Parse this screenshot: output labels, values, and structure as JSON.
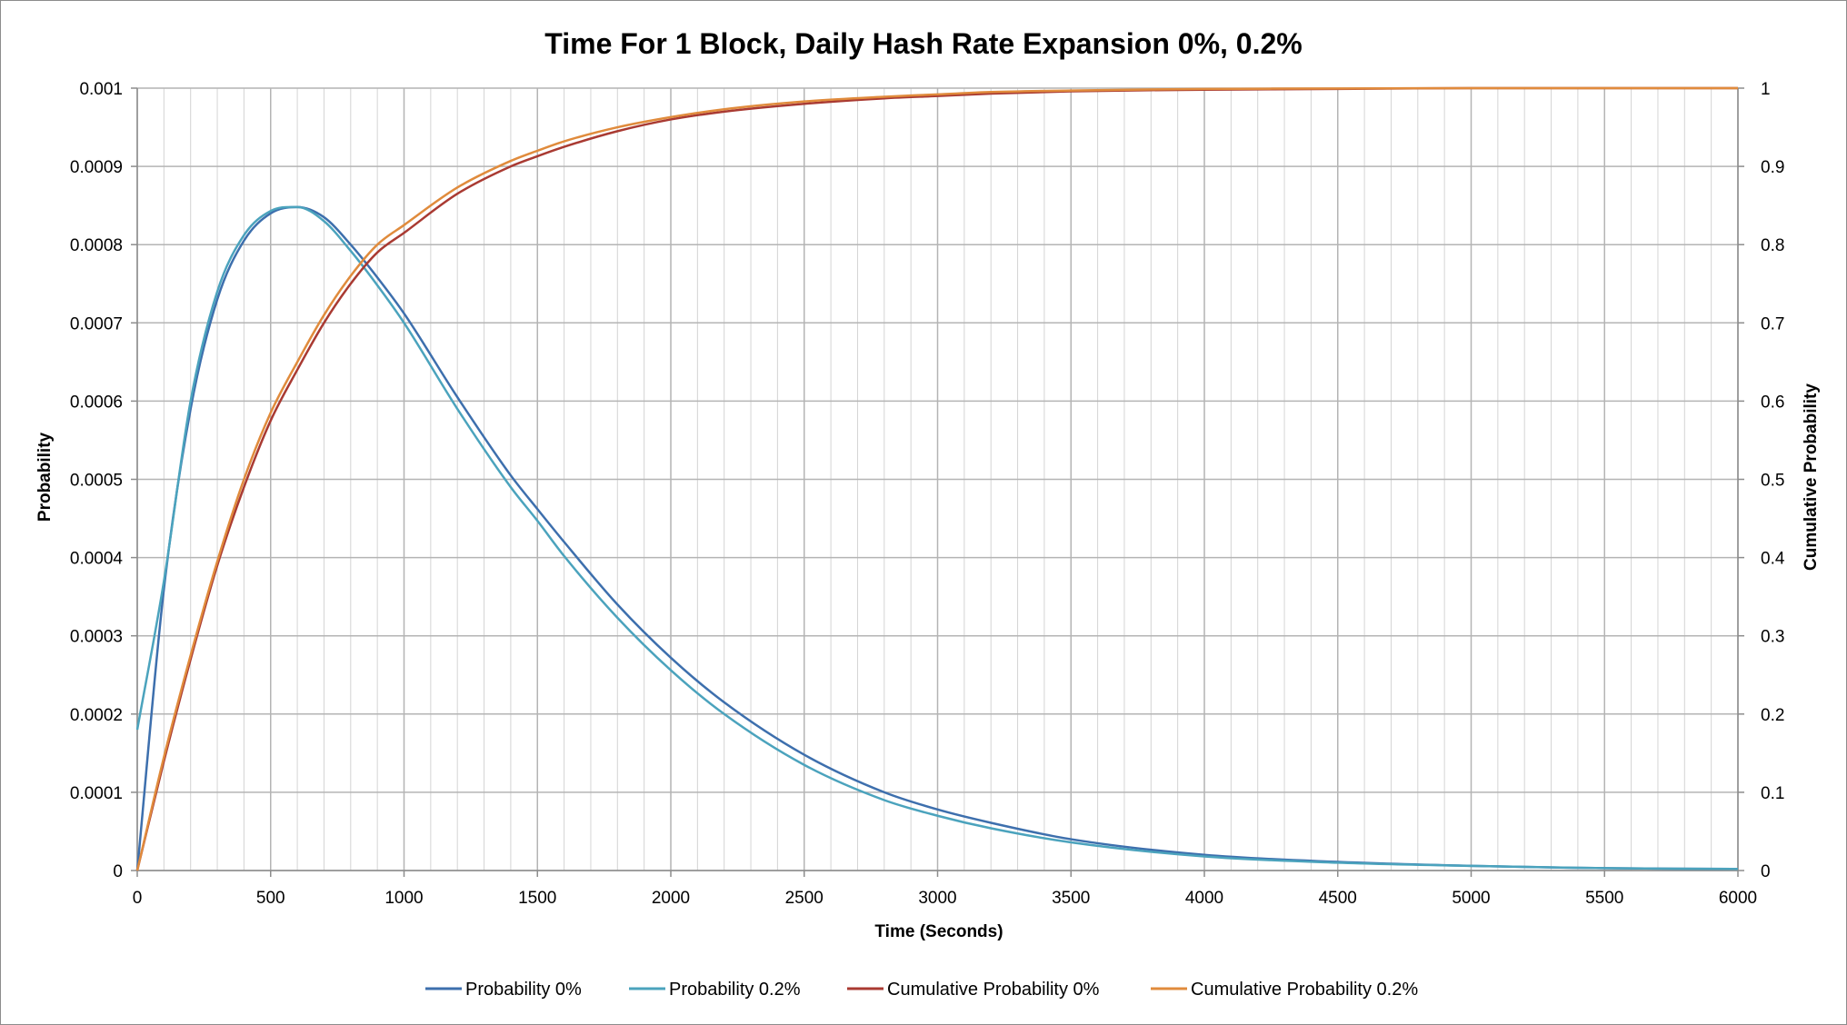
{
  "chart_data": {
    "type": "line",
    "title": "Time For 1 Block, Daily Hash Rate Expansion 0%, 0.2%",
    "xlabel": "Time (Seconds)",
    "ylabel": "Probability",
    "y2label": "Cumulative Probability",
    "xlim": [
      0,
      6000
    ],
    "ylim": [
      0,
      0.001
    ],
    "y2lim": [
      0,
      1
    ],
    "x_ticks": [
      "0",
      "500",
      "1000",
      "1500",
      "2000",
      "2500",
      "3000",
      "3500",
      "4000",
      "4500",
      "5000",
      "5500",
      "6000"
    ],
    "y_ticks": [
      "0",
      "0.0001",
      "0.0002",
      "0.0003",
      "0.0004",
      "0.0005",
      "0.0006",
      "0.0007",
      "0.0008",
      "0.0009",
      "0.001"
    ],
    "y2_ticks": [
      "0",
      "0.1",
      "0.2",
      "0.3",
      "0.4",
      "0.5",
      "0.6",
      "0.7",
      "0.8",
      "0.9",
      "1"
    ],
    "minor_x_step": 100,
    "grid": true,
    "legend_position": "bottom",
    "series": [
      {
        "name": "Probability 0%",
        "axis": "left",
        "color": "#3d6fad",
        "x": [
          0,
          100,
          200,
          300,
          400,
          500,
          600,
          700,
          800,
          900,
          1000,
          1200,
          1400,
          1500,
          1600,
          1800,
          2000,
          2200,
          2500,
          2800,
          3000,
          3200,
          3500,
          4000,
          4500,
          5000,
          5500,
          6000
        ],
        "y": [
          0.0,
          0.00036,
          0.00059,
          0.00073,
          0.000805,
          0.00084,
          0.000848,
          0.000835,
          0.0008,
          0.000758,
          0.000712,
          0.000605,
          0.000505,
          0.000462,
          0.00042,
          0.00034,
          0.000272,
          0.000215,
          0.000148,
          0.0001,
          7.8e-05,
          6.1e-05,
          4e-05,
          2e-05,
          1.1e-05,
          6e-06,
          3e-06,
          2e-06
        ]
      },
      {
        "name": "Probability 0.2%",
        "axis": "left",
        "color": "#4ba3bd",
        "x": [
          0,
          100,
          200,
          300,
          400,
          500,
          600,
          700,
          800,
          900,
          1000,
          1200,
          1400,
          1500,
          1600,
          1800,
          2000,
          2200,
          2500,
          2800,
          3000,
          3200,
          3500,
          4000,
          4500,
          5000,
          5500,
          6000
        ],
        "y": [
          0.00018,
          0.00037,
          0.0006,
          0.00074,
          0.000812,
          0.000843,
          0.000848,
          0.00083,
          0.000792,
          0.000748,
          0.0007,
          0.00059,
          0.00049,
          0.000447,
          0.000402,
          0.000323,
          0.000256,
          0.0002,
          0.000135,
          9e-05,
          7e-05,
          5.4e-05,
          3.6e-05,
          1.8e-05,
          1e-05,
          6e-06,
          3e-06,
          2e-06
        ]
      },
      {
        "name": "Cumulative Probability 0%",
        "axis": "right",
        "color": "#a93a32",
        "x": [
          0,
          100,
          200,
          300,
          400,
          500,
          600,
          700,
          800,
          900,
          1000,
          1200,
          1400,
          1500,
          1600,
          1800,
          2000,
          2200,
          2500,
          2800,
          3000,
          3200,
          3500,
          4000,
          4500,
          5000,
          5500,
          6000
        ],
        "y": [
          0.0,
          0.14,
          0.27,
          0.39,
          0.49,
          0.575,
          0.64,
          0.7,
          0.75,
          0.79,
          0.815,
          0.865,
          0.9,
          0.913,
          0.925,
          0.945,
          0.96,
          0.97,
          0.98,
          0.987,
          0.99,
          0.993,
          0.996,
          0.998,
          0.999,
          1.0,
          1.0,
          1.0
        ]
      },
      {
        "name": "Cumulative Probability 0.2%",
        "axis": "right",
        "color": "#e08b3c",
        "x": [
          0,
          100,
          200,
          300,
          400,
          500,
          600,
          700,
          800,
          900,
          1000,
          1200,
          1400,
          1500,
          1600,
          1800,
          2000,
          2200,
          2500,
          2800,
          3000,
          3200,
          3500,
          4000,
          4500,
          5000,
          5500,
          6000
        ],
        "y": [
          0.0,
          0.145,
          0.275,
          0.395,
          0.5,
          0.585,
          0.65,
          0.71,
          0.76,
          0.8,
          0.825,
          0.873,
          0.907,
          0.92,
          0.932,
          0.95,
          0.963,
          0.973,
          0.983,
          0.989,
          0.992,
          0.995,
          0.997,
          0.999,
          0.9995,
          1.0,
          1.0,
          1.0
        ]
      }
    ]
  }
}
